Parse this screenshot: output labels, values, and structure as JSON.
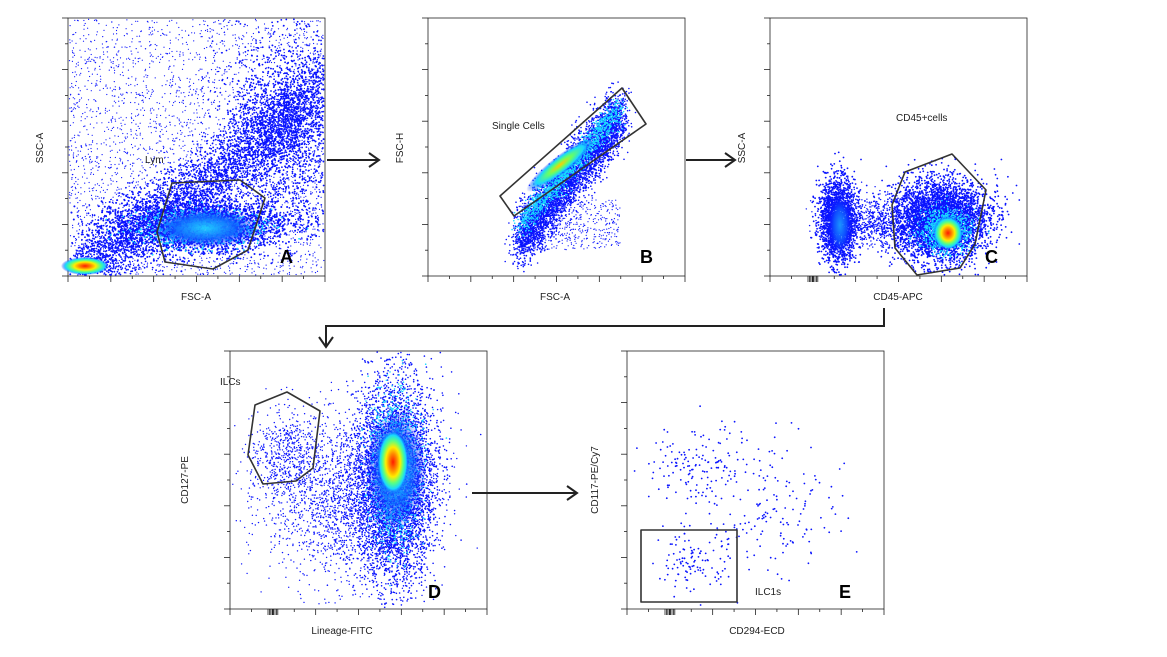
{
  "panels": [
    {
      "id": "A",
      "letter": "A",
      "xlabel": "FSC-A",
      "ylabel": "SSC-A",
      "gate_label": "Lym"
    },
    {
      "id": "B",
      "letter": "B",
      "xlabel": "FSC-A",
      "ylabel": "FSC-H",
      "gate_label": "Single Cells"
    },
    {
      "id": "C",
      "letter": "C",
      "xlabel": "CD45-APC",
      "ylabel": "SSC-A",
      "gate_label": "CD45+cells"
    },
    {
      "id": "D",
      "letter": "D",
      "xlabel": "Lineage-FITC",
      "ylabel": "CD127-PE",
      "gate_label": "ILCs"
    },
    {
      "id": "E",
      "letter": "E",
      "xlabel": "CD294-ECD",
      "ylabel": "CD117-PE/Cy7",
      "gate_label": "ILC1s"
    }
  ],
  "colors": {
    "density_low": "#0a14ff",
    "density_mid": "#18d8ff",
    "density_high": "#ffee00",
    "density_peak": "#ff1a00",
    "gate": "#333333",
    "arrow": "#222222"
  }
}
